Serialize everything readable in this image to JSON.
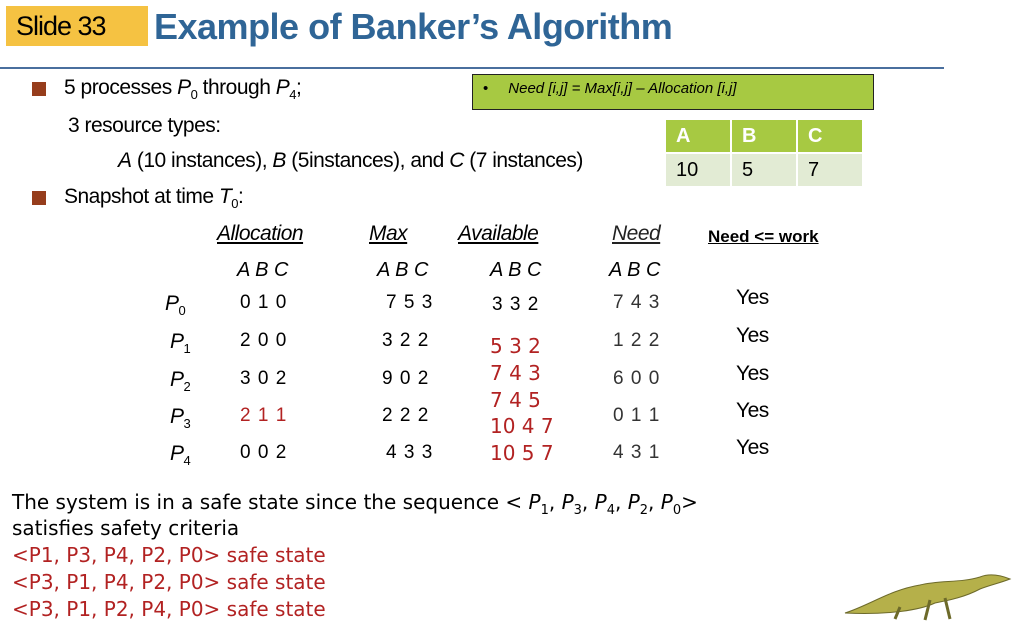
{
  "slide_label": "Slide 33",
  "title": "Example of Banker’s Algorithm",
  "bullets": {
    "line1": "5 processes P0 through P4;",
    "line1_parts": [
      "5 processes ",
      "P",
      "0",
      " through ",
      "P",
      "4",
      ";"
    ],
    "line2": "3 resource types:",
    "line3_parts": [
      "A",
      " (10 instances),  ",
      "B",
      " (5instances), and ",
      "C",
      " (7 instances)"
    ],
    "line4_parts": [
      "Snapshot at time ",
      "T",
      "0",
      ":"
    ]
  },
  "formula": {
    "bullet": "•",
    "text": "Need [i,j] = Max[i,j] – Allocation [i,j]"
  },
  "resources_table": {
    "headers": [
      "A",
      "B",
      "C"
    ],
    "values": [
      "10",
      "5",
      "7"
    ]
  },
  "snapshot": {
    "headers": [
      "Allocation",
      "Max",
      "Available",
      "Need",
      "Need <= work"
    ],
    "abc": "A B C",
    "processes": [
      {
        "p": "P",
        "sub": "0"
      },
      {
        "p": "P",
        "sub": "1"
      },
      {
        "p": "P",
        "sub": "2"
      },
      {
        "p": "P",
        "sub": "3"
      },
      {
        "p": "P",
        "sub": "4"
      }
    ],
    "allocation": [
      "0 1 0",
      "2 0 0",
      "3 0 2",
      "2 1 1",
      "0 0 2"
    ],
    "max": [
      "7 5 3",
      "3 2 2",
      "9 0 2",
      "2 2 2",
      "4 3 3"
    ],
    "available": "3 3 2",
    "work_sequence": [
      "5 3 2",
      "7 4 3",
      "7 4 5",
      "10 4 7",
      "10 5 7"
    ],
    "need": [
      "7 4 3",
      "1 2 2",
      "6 0 0",
      "0 1 1",
      "4 3 1"
    ],
    "need_le_work": [
      "Yes",
      "Yes",
      "Yes",
      "Yes",
      "Yes"
    ]
  },
  "conclusion": {
    "line1_parts": [
      "The system is in a safe state since the sequence < ",
      "P",
      "1",
      ", ",
      "P",
      "3",
      ", ",
      "P",
      "4",
      ", ",
      "P",
      "2",
      ", ",
      "P",
      "0",
      ">"
    ],
    "line2": "satisfies safety criteria",
    "safe_sequences": [
      "<P1, P3, P4, P2, P0> safe state",
      "<P3, P1, P4, P2, P0> safe state",
      "<P3, P1, P2, P4, P0> safe state"
    ]
  },
  "colors": {
    "title": "#2f6596",
    "label_bg": "#f5c242",
    "accent_green": "#a7c942",
    "highlight_red": "#b22222"
  }
}
